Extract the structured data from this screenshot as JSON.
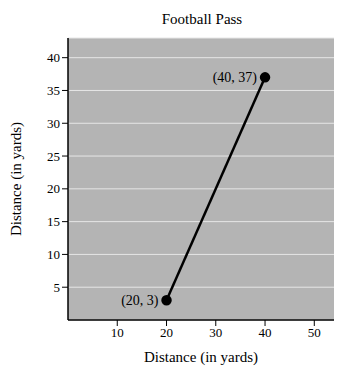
{
  "chart_data": {
    "type": "line",
    "title": "Football Pass",
    "x_label": "Distance (in yards)",
    "y_label": "Distance (in yards)",
    "x": [
      20,
      40
    ],
    "values": [
      3,
      37
    ],
    "data_labels": true,
    "value_labels": [
      "(20, 3)",
      "(40, 37)"
    ],
    "color": "#000000",
    "marker": "o",
    "xlim": [
      0,
      54
    ],
    "ylim": [
      0,
      43
    ],
    "xticks": [
      10,
      20,
      30,
      40,
      50
    ],
    "yticks": [
      5,
      10,
      15,
      20,
      25,
      30,
      35,
      40
    ],
    "grid": true
  }
}
